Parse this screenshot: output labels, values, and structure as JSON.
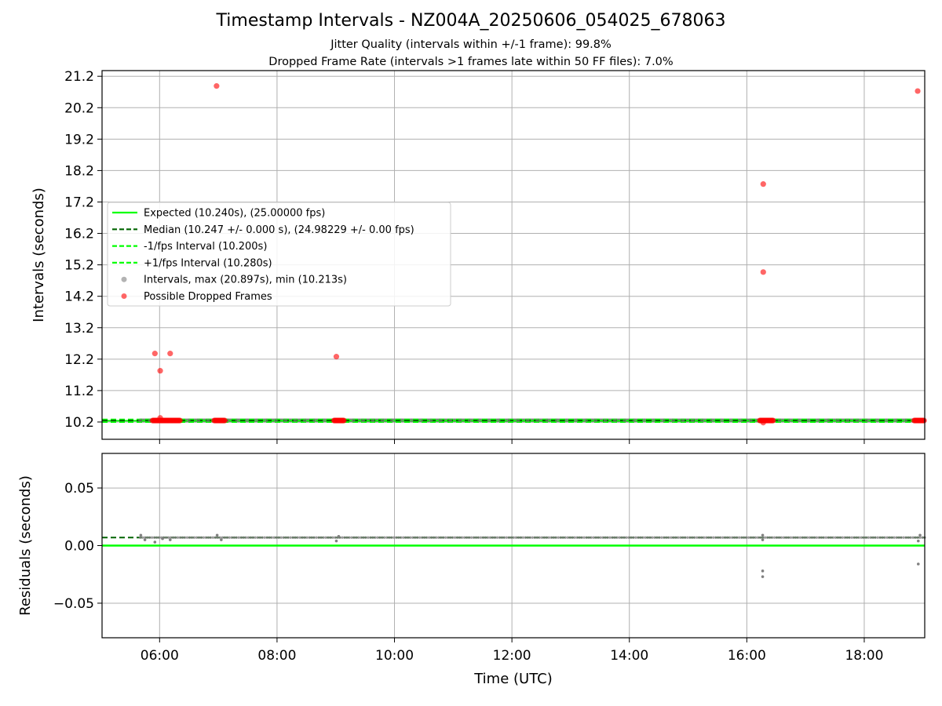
{
  "title": "Timestamp Intervals - NZ004A_20250606_054025_678063",
  "subtitle_1": "Jitter Quality (intervals within +/-1 frame): 99.8%",
  "subtitle_2": "Dropped Frame Rate (intervals >1 frames late within 50 FF files): 7.0%",
  "colors": {
    "expected": "#00ff00",
    "median": "#006400",
    "fps_bounds": "#00ff00",
    "intervals": "#808080",
    "dropped": "#ff0000",
    "grid": "#b0b0b0"
  },
  "chart_data": [
    {
      "type": "scatter",
      "name": "intervals",
      "ylabel": "Intervals (seconds)",
      "xlabel": "",
      "xlim_hours": [
        5.02,
        19.03
      ],
      "ylim": [
        9.65,
        21.38
      ],
      "yticks": [
        10.2,
        11.2,
        12.2,
        13.2,
        14.2,
        15.2,
        16.2,
        17.2,
        18.2,
        19.2,
        20.2,
        21.2
      ],
      "ytick_labels": [
        "10.2",
        "11.2",
        "12.2",
        "13.2",
        "14.2",
        "15.2",
        "16.2",
        "17.2",
        "18.2",
        "19.2",
        "20.2",
        "21.2"
      ],
      "xticks_hours": [
        6,
        8,
        10,
        12,
        14,
        16,
        18
      ],
      "grid": true,
      "reference_lines": {
        "expected": 10.24,
        "median": 10.247,
        "minus_fps": 10.2,
        "plus_fps": 10.28
      },
      "legend": {
        "placement": "center-left",
        "entries": [
          "Expected (10.240s), (25.00000 fps)",
          "Median (10.247 +/- 0.000 s), (24.98229 +/- 0.00 fps)",
          "-1/fps Interval (10.200s)",
          "+1/fps Interval (10.280s)",
          "Intervals, max (20.897s), min (10.213s)",
          "Possible Dropped Frames"
        ]
      },
      "dense_interval_band": {
        "start_hour": 5.67,
        "end_hour": 19.03,
        "value": 10.247
      },
      "dropped_frame_clusters": [
        {
          "start_hour": 5.88,
          "end_hour": 6.35,
          "value": 10.247
        },
        {
          "start_hour": 6.93,
          "end_hour": 7.12,
          "value": 10.247
        },
        {
          "start_hour": 8.97,
          "end_hour": 9.15,
          "value": 10.247
        },
        {
          "start_hour": 16.22,
          "end_hour": 16.45,
          "value": 10.247
        },
        {
          "start_hour": 18.85,
          "end_hour": 19.03,
          "value": 10.247
        }
      ],
      "dropped_frames": [
        {
          "t": 5.92,
          "v": 12.38
        },
        {
          "t": 6.01,
          "v": 11.83
        },
        {
          "t": 6.18,
          "v": 12.38
        },
        {
          "t": 6.01,
          "v": 10.33
        },
        {
          "t": 6.97,
          "v": 20.89
        },
        {
          "t": 9.01,
          "v": 12.28
        },
        {
          "t": 16.28,
          "v": 17.77
        },
        {
          "t": 16.28,
          "v": 14.97
        },
        {
          "t": 16.28,
          "v": 10.18
        },
        {
          "t": 18.91,
          "v": 20.73
        }
      ]
    },
    {
      "type": "scatter",
      "name": "residuals",
      "ylabel": "Residuals (seconds)",
      "xlabel": "Time (UTC)",
      "xlim_hours": [
        5.02,
        19.03
      ],
      "ylim": [
        -0.08,
        0.08
      ],
      "yticks": [
        -0.05,
        0.0,
        0.05
      ],
      "ytick_labels": [
        "−0.05",
        "0.00",
        "0.05"
      ],
      "xticks_hours": [
        6,
        8,
        10,
        12,
        14,
        16,
        18
      ],
      "xtick_labels": [
        "06:00",
        "08:00",
        "10:00",
        "12:00",
        "14:00",
        "16:00",
        "18:00"
      ],
      "grid": true,
      "reference_lines": {
        "zero": 0.0,
        "median": 0.007
      },
      "dense_residual_band": {
        "start_hour": 5.67,
        "end_hour": 19.03,
        "value": 0.007
      },
      "points": [
        {
          "t": 5.68,
          "v": 0.009
        },
        {
          "t": 5.75,
          "v": 0.005
        },
        {
          "t": 5.92,
          "v": 0.003
        },
        {
          "t": 6.05,
          "v": 0.006
        },
        {
          "t": 6.18,
          "v": 0.005
        },
        {
          "t": 6.98,
          "v": 0.009
        },
        {
          "t": 7.05,
          "v": 0.005
        },
        {
          "t": 9.01,
          "v": 0.004
        },
        {
          "t": 9.05,
          "v": 0.008
        },
        {
          "t": 16.27,
          "v": -0.022
        },
        {
          "t": 16.27,
          "v": -0.027
        },
        {
          "t": 16.27,
          "v": 0.005
        },
        {
          "t": 16.27,
          "v": 0.009
        },
        {
          "t": 18.92,
          "v": -0.016
        },
        {
          "t": 18.92,
          "v": 0.004
        },
        {
          "t": 18.95,
          "v": 0.009
        }
      ]
    }
  ]
}
